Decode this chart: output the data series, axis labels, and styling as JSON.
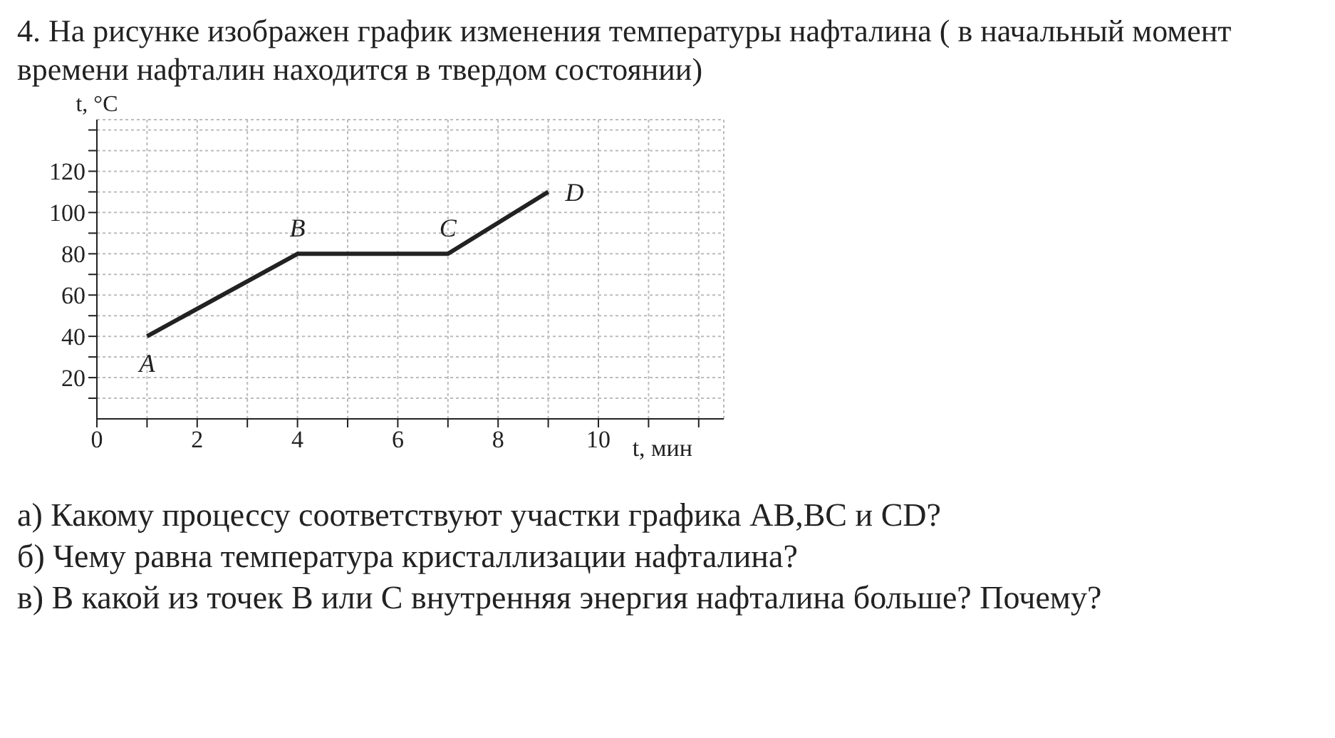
{
  "chart_data": {
    "type": "line",
    "title": "4. На рисунке изображен график изменения температуры нафталина ( в начальный момент времени нафталин находится в твердом состоянии)",
    "xlabel": "t, мин",
    "ylabel": "t, °C",
    "x": [
      1,
      4,
      7,
      9
    ],
    "series": [
      {
        "color": "#222222",
        "values": [
          40,
          80,
          80,
          110
        ]
      }
    ],
    "xlim": [
      0,
      12.5
    ],
    "ylim": [
      0,
      145
    ],
    "xticks": [
      {
        "value": 0,
        "label": "0"
      },
      {
        "value": 1,
        "label": null
      },
      2,
      {
        "value": 3,
        "label": null
      },
      4,
      {
        "value": 5,
        "label": null
      },
      6,
      {
        "value": 7,
        "label": null
      },
      8,
      {
        "value": 9,
        "label": null
      },
      10,
      {
        "value": 11,
        "label": null
      },
      {
        "value": 12,
        "label": null
      }
    ],
    "yticks": [
      {
        "value": 10,
        "label": null
      },
      20,
      {
        "value": 30,
        "label": null
      },
      40,
      {
        "value": 50,
        "label": null
      },
      60,
      {
        "value": 70,
        "label": null
      },
      80,
      {
        "value": 90,
        "label": null
      },
      100,
      {
        "value": 110,
        "label": null
      },
      120,
      {
        "value": 130,
        "label": null
      },
      {
        "value": 140,
        "label": null
      }
    ],
    "grid": true,
    "marker": "none",
    "line_style": "solid",
    "legend": false,
    "annotations": [
      {
        "text": "A",
        "x": 1,
        "y": 40
      },
      {
        "text": "B",
        "x": 4,
        "y": 80
      },
      {
        "text": "C",
        "x": 7,
        "y": 80
      },
      {
        "text": "D",
        "x": 9,
        "y": 110
      },
      "а) Какому процессу соответствуют участки графика АВ,ВС и СD?",
      "б) Чему равна температура кристаллизации нафталина?",
      "в) В какой из точек В или С внутренняя энергия нафталина больше? Почему?"
    ]
  }
}
